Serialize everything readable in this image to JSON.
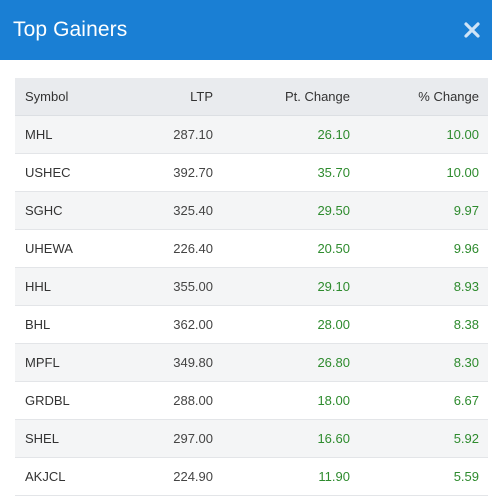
{
  "modal": {
    "title": "Top Gainers",
    "close_icon": "close-icon"
  },
  "colors": {
    "header_bg": "#1a7fd4",
    "positive": "#2e8b2e"
  },
  "table": {
    "headers": {
      "symbol": "Symbol",
      "ltp": "LTP",
      "pt_change": "Pt. Change",
      "pct_change": "% Change"
    },
    "rows": [
      {
        "symbol": "MHL",
        "ltp": "287.10",
        "pt_change": "26.10",
        "pct_change": "10.00"
      },
      {
        "symbol": "USHEC",
        "ltp": "392.70",
        "pt_change": "35.70",
        "pct_change": "10.00"
      },
      {
        "symbol": "SGHC",
        "ltp": "325.40",
        "pt_change": "29.50",
        "pct_change": "9.97"
      },
      {
        "symbol": "UHEWA",
        "ltp": "226.40",
        "pt_change": "20.50",
        "pct_change": "9.96"
      },
      {
        "symbol": "HHL",
        "ltp": "355.00",
        "pt_change": "29.10",
        "pct_change": "8.93"
      },
      {
        "symbol": "BHL",
        "ltp": "362.00",
        "pt_change": "28.00",
        "pct_change": "8.38"
      },
      {
        "symbol": "MPFL",
        "ltp": "349.80",
        "pt_change": "26.80",
        "pct_change": "8.30"
      },
      {
        "symbol": "GRDBL",
        "ltp": "288.00",
        "pt_change": "18.00",
        "pct_change": "6.67"
      },
      {
        "symbol": "SHEL",
        "ltp": "297.00",
        "pt_change": "16.60",
        "pct_change": "5.92"
      },
      {
        "symbol": "AKJCL",
        "ltp": "224.90",
        "pt_change": "11.90",
        "pct_change": "5.59"
      }
    ]
  }
}
